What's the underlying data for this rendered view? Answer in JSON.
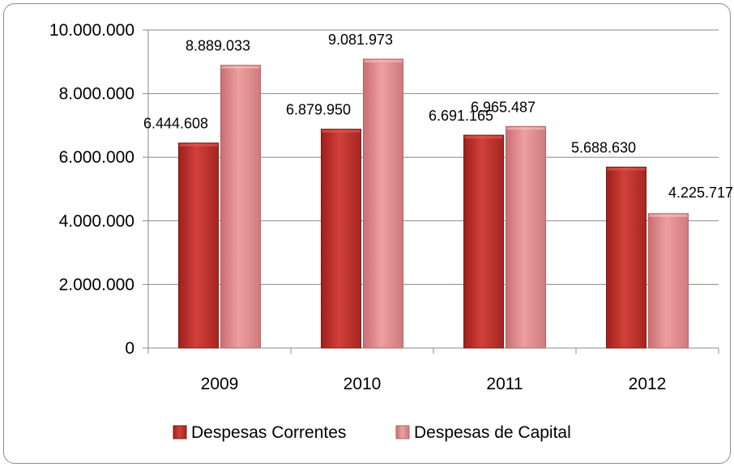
{
  "chart_data": {
    "type": "bar",
    "categories": [
      "2009",
      "2010",
      "2011",
      "2012"
    ],
    "series": [
      {
        "name": "Despesas Correntes",
        "values": [
          6444608,
          6879950,
          6691165,
          5688630
        ],
        "labels": [
          "6.444.608",
          "6.879.950",
          "6.691.165",
          "5.688.630"
        ],
        "color": "#c0302d"
      },
      {
        "name": "Despesas de Capital",
        "values": [
          8889033,
          9081973,
          6965487,
          4225717
        ],
        "labels": [
          "8.889.033",
          "9.081.973",
          "6.965.487",
          "4.225.717"
        ],
        "color": "#e08f91"
      }
    ],
    "ylim": [
      0,
      10000000
    ],
    "yticks": [
      0,
      2000000,
      4000000,
      6000000,
      8000000,
      10000000
    ],
    "ytick_labels": [
      "0",
      "2.000.000",
      "4.000.000",
      "6.000.000",
      "8.000.000",
      "10.000.000"
    ],
    "grid": true,
    "legend": "bottom"
  }
}
